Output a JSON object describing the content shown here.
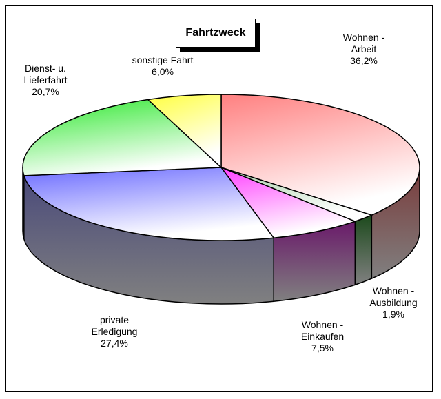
{
  "chart_data": {
    "type": "pie",
    "title": "Fahrtzweck",
    "three_d": true,
    "slices": [
      {
        "name": "Wohnen - Arbeit",
        "name_lines": [
          "Wohnen -",
          "Arbeit"
        ],
        "value": 36.2,
        "value_label": "36,2%",
        "color": "#ff8080",
        "side": "#7a3b3b"
      },
      {
        "name": "Wohnen - Ausbildung",
        "name_lines": [
          "Wohnen -",
          "Ausbildung"
        ],
        "value": 1.9,
        "value_label": "1,9%",
        "color": "#a6cfa6",
        "side": "#1d4a1d"
      },
      {
        "name": "Wohnen - Einkaufen",
        "name_lines": [
          "Wohnen -",
          "Einkaufen"
        ],
        "value": 7.5,
        "value_label": "7,5%",
        "color": "#ff40ff",
        "side": "#6a1a6a"
      },
      {
        "name": "private Erledigung",
        "name_lines": [
          "private",
          "Erledigung"
        ],
        "value": 27.4,
        "value_label": "27,4%",
        "color": "#6a6aff",
        "side": "#4a4a7a"
      },
      {
        "name": "Dienst- u. Lieferfahrt",
        "name_lines": [
          "Dienst- u.",
          "Lieferfahrt"
        ],
        "value": 20.7,
        "value_label": "20,7%",
        "color": "#30e830",
        "side": "#4a7a4a"
      },
      {
        "name": "sonstige Fahrt",
        "name_lines": [
          "sonstige Fahrt"
        ],
        "value": 6.0,
        "value_label": "6,0%",
        "color": "#ffff40",
        "side": "#7a7a30"
      }
    ]
  }
}
